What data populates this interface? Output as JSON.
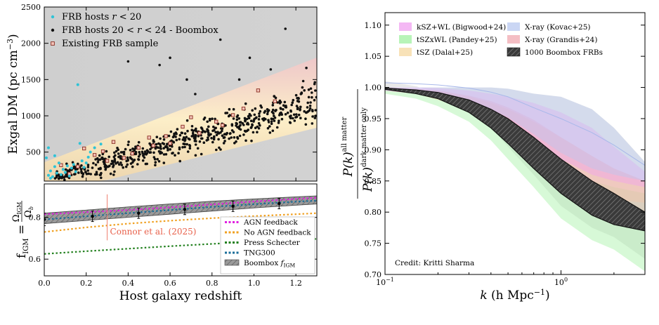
{
  "chart_data": [
    {
      "type": "scatter",
      "panel": "top-left",
      "title": "",
      "xlabel": "",
      "ylabel_main": "Exgal DM",
      "ylabel_unit": "(pc cm",
      "ylabel_exp": "−3",
      "ylabel_close": ")",
      "xlim": [
        0,
        1.3
      ],
      "ylim": [
        100,
        2500
      ],
      "y_ticks": [
        "500",
        "1000",
        "1500",
        "2000",
        "2500"
      ],
      "legend_position": "top-left",
      "legend": [
        {
          "name": "FRB hosts r < 20",
          "color": "#2fc3d6"
        },
        {
          "name": "FRB hosts 20 < r < 24 - Boombox",
          "color": "#111111"
        },
        {
          "name": "Existing FRB sample",
          "color": "#b5473a"
        }
      ],
      "series": [
        {
          "name": "FRB hosts r < 20",
          "points": [
            [
              0.02,
              180
            ],
            [
              0.03,
              240
            ],
            [
              0.04,
              160
            ],
            [
              0.05,
              300
            ],
            [
              0.06,
              210
            ],
            [
              0.07,
              350
            ],
            [
              0.08,
              190
            ],
            [
              0.09,
              260
            ],
            [
              0.1,
              220
            ],
            [
              0.11,
              310
            ],
            [
              0.12,
              170
            ],
            [
              0.13,
              280
            ],
            [
              0.14,
              330
            ],
            [
              0.15,
              230
            ],
            [
              0.16,
              1430
            ],
            [
              0.17,
              620
            ],
            [
              0.18,
              380
            ],
            [
              0.19,
              290
            ],
            [
              0.2,
              350
            ],
            [
              0.21,
              430
            ],
            [
              0.22,
              500
            ],
            [
              0.24,
              560
            ],
            [
              0.27,
              610
            ],
            [
              0.01,
              420
            ],
            [
              0.02,
              560
            ],
            [
              0.03,
              140
            ],
            [
              0.05,
              450
            ]
          ]
        },
        {
          "name": "Existing FRB sample",
          "points": [
            [
              0.08,
              320
            ],
            [
              0.12,
              200
            ],
            [
              0.19,
              550
            ],
            [
              0.24,
              460
            ],
            [
              0.28,
              510
            ],
            [
              0.33,
              640
            ],
            [
              0.38,
              420
            ],
            [
              0.45,
              560
            ],
            [
              0.52,
              590
            ],
            [
              0.58,
              720
            ],
            [
              0.66,
              850
            ],
            [
              0.74,
              760
            ],
            [
              0.82,
              920
            ],
            [
              0.9,
              1010
            ],
            [
              1.02,
              1350
            ],
            [
              1.1,
              1200
            ],
            [
              0.3,
              380
            ],
            [
              0.42,
              480
            ],
            [
              0.6,
              620
            ],
            [
              0.7,
              980
            ],
            [
              0.95,
              1100
            ],
            [
              0.16,
              300
            ],
            [
              0.5,
              700
            ],
            [
              0.85,
              870
            ]
          ]
        }
      ],
      "outliers": [
        [
          0.4,
          1750
        ],
        [
          0.55,
          1700
        ],
        [
          0.6,
          1800
        ],
        [
          0.84,
          2050
        ],
        [
          0.98,
          1800
        ],
        [
          1.08,
          1640
        ],
        [
          1.15,
          2200
        ],
        [
          0.68,
          1500
        ],
        [
          0.93,
          1500
        ],
        [
          1.25,
          1660
        ],
        [
          1.18,
          1150
        ],
        [
          0.72,
          1300
        ]
      ]
    },
    {
      "type": "line",
      "panel": "bottom-left",
      "xlabel": "Host galaxy redshift",
      "ylabel_main": "f",
      "ylabel_sub": "IGM",
      "ylabel_eq": "=",
      "ylabel_num_main": "Ω",
      "ylabel_num_sub": "IGM",
      "ylabel_den_main": "Ω",
      "ylabel_den_sub": "b",
      "xlim": [
        0,
        1.3
      ],
      "ylim": [
        0.52,
        0.96
      ],
      "x_ticks": [
        "0.0",
        "0.2",
        "0.4",
        "0.6",
        "0.8",
        "1.0",
        "1.2"
      ],
      "y_ticks": [
        "0.6",
        "0.8"
      ],
      "annotation": "Connor et al. (2025)",
      "legend_position": "bottom-right",
      "legend": [
        {
          "name": "AGN feedback",
          "color": "#e020e0"
        },
        {
          "name": "No AGN feedback",
          "color": "#f0a020"
        },
        {
          "name": "Press Schecter",
          "color": "#22801e"
        },
        {
          "name": "TNG300",
          "color": "#1a6e9a"
        },
        {
          "name": "Boombox",
          "name_sym": "f",
          "name_sub": "IGM",
          "color": "#888888"
        }
      ],
      "x": [
        0,
        0.2,
        0.4,
        0.6,
        0.8,
        1.0,
        1.2,
        1.3
      ],
      "series": [
        {
          "name": "AGN feedback",
          "values": [
            0.815,
            0.825,
            0.835,
            0.848,
            0.862,
            0.876,
            0.888,
            0.894
          ]
        },
        {
          "name": "No AGN feedback",
          "values": [
            0.73,
            0.752,
            0.77,
            0.784,
            0.796,
            0.806,
            0.815,
            0.82
          ]
        },
        {
          "name": "Press Schecter",
          "values": [
            0.625,
            0.638,
            0.65,
            0.662,
            0.673,
            0.683,
            0.692,
            0.697
          ]
        },
        {
          "name": "TNG300",
          "values": [
            0.79,
            0.805,
            0.82,
            0.835,
            0.85,
            0.863,
            0.875,
            0.88
          ]
        }
      ],
      "band": {
        "lower": [
          0.77,
          0.785,
          0.8,
          0.815,
          0.83,
          0.845,
          0.858,
          0.864
        ],
        "upper": [
          0.82,
          0.835,
          0.85,
          0.864,
          0.877,
          0.888,
          0.898,
          0.903
        ]
      },
      "errorbars": [
        {
          "x": 0.0,
          "y": 0.79,
          "err": 0.03
        },
        {
          "x": 0.23,
          "y": 0.805,
          "err": 0.025
        },
        {
          "x": 0.45,
          "y": 0.82,
          "err": 0.025
        },
        {
          "x": 0.67,
          "y": 0.838,
          "err": 0.025
        },
        {
          "x": 0.9,
          "y": 0.853,
          "err": 0.025
        },
        {
          "x": 1.12,
          "y": 0.866,
          "err": 0.025
        }
      ],
      "connor_point": {
        "x": 0.3,
        "y": 0.8,
        "err": 0.11
      }
    },
    {
      "type": "area",
      "panel": "right",
      "xlabel_sym": "k",
      "xlabel_rest": "(h Mpc",
      "xlabel_exp": "−1",
      "xlabel_close": ")",
      "ylabel_sym": "P(k)",
      "ylabel_num_sup": "all matter",
      "ylabel_den_sub": "dark matter only",
      "x_scale": "log",
      "xlim": [
        0.1,
        3.0
      ],
      "ylim": [
        0.7,
        1.12
      ],
      "x_ticks": [
        {
          "v": 0.1,
          "mant": "10",
          "exp": "−1"
        },
        {
          "v": 1.0,
          "mant": "10",
          "exp": "0"
        }
      ],
      "y_ticks": [
        "0.70",
        "0.75",
        "0.80",
        "0.85",
        "0.90",
        "0.95",
        "1.00",
        "1.05",
        "1.10"
      ],
      "credit": "Credit: Kritti Sharma",
      "legend_position": "top",
      "legend": [
        {
          "name": "kSZ+WL (Bigwood+24)",
          "color": "#f0a0f0"
        },
        {
          "name": "tSZxWL (Pandey+25)",
          "color": "#a0f0a0"
        },
        {
          "name": "tSZ (Dalal+25)",
          "color": "#f5d8a0"
        },
        {
          "name": "X-ray (Kovac+25)",
          "color": "#b8c8f0"
        },
        {
          "name": "X-ray (Grandis+24)",
          "color": "#f0a8b0"
        },
        {
          "name": "1000 Boombox FRBs",
          "color": "#555555"
        }
      ],
      "k": [
        0.1,
        0.15,
        0.2,
        0.3,
        0.4,
        0.5,
        0.7,
        1.0,
        1.5,
        2.0,
        3.0
      ],
      "series": [
        {
          "name": "kSZ+WL (Bigwood+24)",
          "lower": [
            0.995,
            0.99,
            0.985,
            0.97,
            0.955,
            0.94,
            0.915,
            0.885,
            0.86,
            0.85,
            0.84
          ],
          "upper": [
            1.0,
            1.0,
            0.999,
            0.995,
            0.99,
            0.985,
            0.975,
            0.96,
            0.935,
            0.905,
            0.865
          ]
        },
        {
          "name": "tSZxWL (Pandey+25)",
          "lower": [
            0.99,
            0.982,
            0.97,
            0.945,
            0.915,
            0.885,
            0.84,
            0.79,
            0.755,
            0.74,
            0.705
          ],
          "upper": [
            0.998,
            0.995,
            0.99,
            0.975,
            0.955,
            0.935,
            0.9,
            0.87,
            0.85,
            0.84,
            0.83
          ]
        },
        {
          "name": "tSZ (Dalal+25)",
          "lower": [
            0.995,
            0.99,
            0.98,
            0.965,
            0.945,
            0.925,
            0.89,
            0.855,
            0.83,
            0.82,
            0.815
          ],
          "upper": [
            1.0,
            0.998,
            0.995,
            0.985,
            0.975,
            0.965,
            0.945,
            0.92,
            0.89,
            0.87,
            0.85
          ]
        },
        {
          "name": "X-ray (Kovac+25)",
          "lower": [
            0.995,
            0.992,
            0.988,
            0.978,
            0.965,
            0.952,
            0.925,
            0.895,
            0.87,
            0.86,
            0.85
          ],
          "upper": [
            1.0,
            1.0,
            1.0,
            1.0,
            1.0,
            0.998,
            0.99,
            0.985,
            0.965,
            0.935,
            0.88
          ]
        },
        {
          "name": "X-ray (Grandis+24)",
          "lower": [
            0.995,
            0.99,
            0.982,
            0.965,
            0.945,
            0.925,
            0.89,
            0.855,
            0.825,
            0.815,
            0.8
          ],
          "upper": [
            1.0,
            0.998,
            0.995,
            0.987,
            0.978,
            0.968,
            0.948,
            0.92,
            0.89,
            0.87,
            0.85
          ]
        },
        {
          "name": "1000 Boombox FRBs",
          "lower": [
            0.997,
            0.99,
            0.982,
            0.96,
            0.935,
            0.91,
            0.87,
            0.83,
            0.795,
            0.78,
            0.77
          ],
          "upper": [
            0.999,
            0.996,
            0.992,
            0.98,
            0.965,
            0.95,
            0.92,
            0.885,
            0.85,
            0.83,
            0.8
          ]
        }
      ]
    }
  ]
}
